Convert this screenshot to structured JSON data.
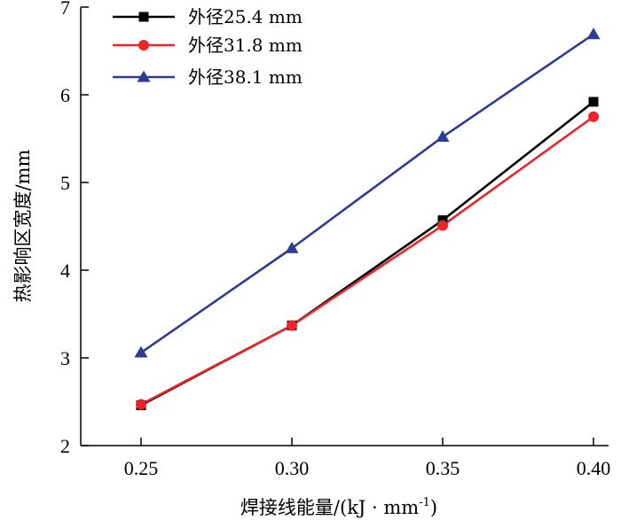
{
  "chart_data": {
    "type": "line",
    "title": "",
    "xlabel": "焊接线能量/(kJ · mm",
    "xlabel_sup": "-1",
    "xlabel_close": ")",
    "ylabel": "热影响区宽度/mm",
    "x": [
      0.25,
      0.3,
      0.35,
      0.4
    ],
    "x_tick_labels": [
      "0.25",
      "0.30",
      "0.35",
      "0.40"
    ],
    "xlim": [
      0.23,
      0.405
    ],
    "ylim": [
      2,
      7
    ],
    "y_ticks": [
      2,
      3,
      4,
      5,
      6,
      7
    ],
    "y_tick_labels": [
      "2",
      "3",
      "4",
      "5",
      "6",
      "7"
    ],
    "grid": false,
    "legend_position": "top-left",
    "series": [
      {
        "name": "外径25.4 mm",
        "color": "#000000",
        "marker": "square",
        "values": [
          2.46,
          3.37,
          4.57,
          5.92
        ]
      },
      {
        "name": "外径31.8 mm",
        "color": "#e8262a",
        "marker": "circle",
        "values": [
          2.47,
          3.37,
          4.51,
          5.75
        ]
      },
      {
        "name": "外径38.1 mm",
        "color": "#2e3d93",
        "marker": "triangle",
        "values": [
          3.06,
          4.25,
          5.52,
          6.69
        ]
      }
    ]
  }
}
